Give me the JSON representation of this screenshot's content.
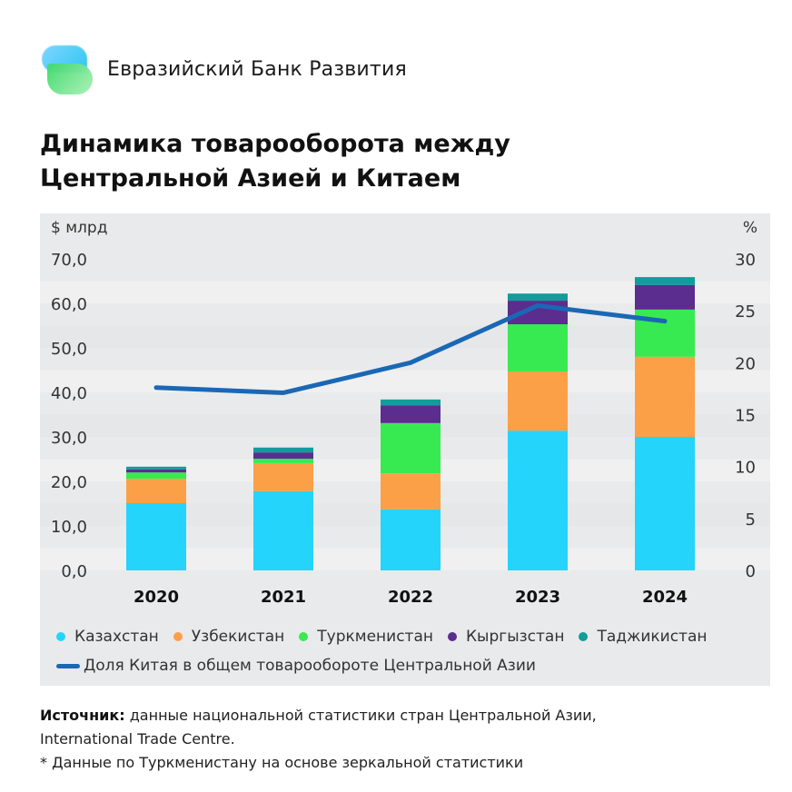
{
  "header": {
    "brand": "Евразийский Банк Развития",
    "logo": "eabr-logo-icon"
  },
  "title_line1": "Динамика товарооборота между",
  "title_line2": "Центральной Азией и Китаем",
  "chart_data": {
    "type": "bar",
    "stacked": true,
    "title": "Динамика товарооборота между Центральной Азией и Китаем",
    "categories": [
      "2020",
      "2021",
      "2022",
      "2023",
      "2024"
    ],
    "ylabel": "$ млрд",
    "ylabel_right": "%",
    "ylim": [
      0,
      70
    ],
    "yticks": [
      "0,0",
      "10,0",
      "20,0",
      "30,0",
      "40,0",
      "50,0",
      "60,0",
      "70,0"
    ],
    "ylim_right": [
      0,
      30
    ],
    "yticks_right": [
      "0",
      "5",
      "10",
      "15",
      "20",
      "25",
      "30"
    ],
    "grid": "horizontal bands",
    "legend_position": "bottom",
    "series": [
      {
        "name": "Казахстан",
        "color": "#24d4fb",
        "values": [
          15.1,
          17.8,
          13.7,
          31.4,
          30.0
        ]
      },
      {
        "name": "Узбекистан",
        "color": "#fba047",
        "values": [
          5.5,
          6.3,
          8.1,
          13.3,
          18.0
        ]
      },
      {
        "name": "Туркменистан",
        "color": "#37ea51",
        "values": [
          1.4,
          1.0,
          11.3,
          10.6,
          10.6
        ]
      },
      {
        "name": "Кыргызстан",
        "color": "#5b2d8e",
        "values": [
          0.7,
          1.4,
          4.0,
          5.3,
          5.5
        ]
      },
      {
        "name": "Таджикистан",
        "color": "#149b9b",
        "values": [
          0.6,
          1.1,
          1.3,
          1.6,
          1.8
        ]
      }
    ],
    "line_series": {
      "name": "Доля Китая в общем товарообороте Центральной Азии",
      "color": "#1a68b5",
      "axis": "right",
      "values": [
        17.6,
        17.1,
        20.0,
        25.5,
        24.0
      ]
    }
  },
  "legend": {
    "items": [
      "Казахстан",
      "Узбекистан",
      "Туркменистан",
      "Кыргызстан",
      "Таджикистан"
    ],
    "line_label": "Доля Китая в общем товарообороте Центральной Азии"
  },
  "source": {
    "label": "Источник:",
    "text_line1": " данные национальной статистики стран Центральной Азии,",
    "text_line2": "International Trade Centre.",
    "note": "* Данные по Туркменистану на основе зеркальной статистики"
  }
}
